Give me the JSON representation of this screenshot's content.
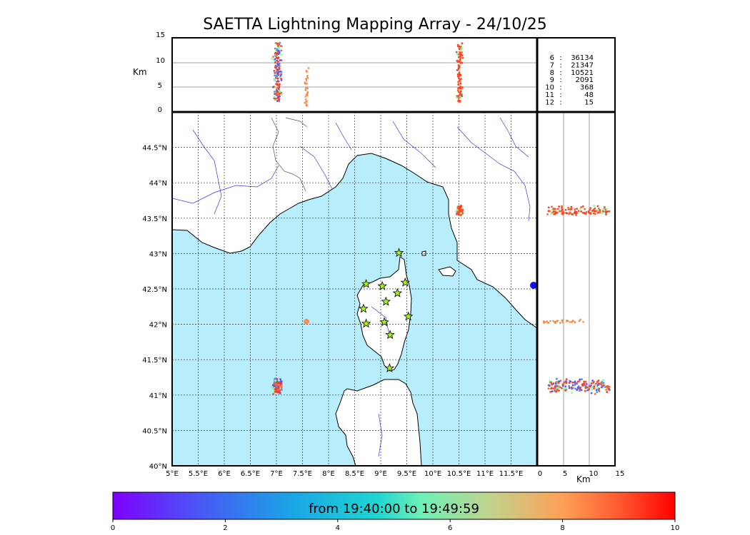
{
  "title": "SAETTA Lightning Mapping Array - 24/10/25",
  "height_axis": {
    "unit": "Km",
    "ticks": [
      "15",
      "10",
      "5",
      "0"
    ],
    "ticks_x": [
      "0",
      "5",
      "10",
      "15"
    ]
  },
  "longitude_ticks": [
    "5°E",
    "5.5°E",
    "6°E",
    "6.5°E",
    "7°E",
    "7.5°E",
    "8°E",
    "8.5°E",
    "9°E",
    "9.5°E",
    "10°E",
    "10.5°E",
    "11°E",
    "11.5°E"
  ],
  "latitude_ticks": [
    "44.5°N",
    "44°N",
    "43.5°N",
    "43°N",
    "42.5°N",
    "42°N",
    "41.5°N",
    "41°N",
    "40.5°N",
    "40°N"
  ],
  "station_counts": [
    {
      "n": "6",
      "sep": ":",
      "count": "36134",
      "color": "#000000"
    },
    {
      "n": "7",
      "sep": ":",
      "count": "21347",
      "color": "#e00000"
    },
    {
      "n": "8",
      "sep": ":",
      "count": "10521",
      "color": "#000000"
    },
    {
      "n": "9",
      "sep": ":",
      "count": "2091",
      "color": "#000000"
    },
    {
      "n": "10",
      "sep": ":",
      "count": "368",
      "color": "#000000"
    },
    {
      "n": "11",
      "sep": ":",
      "count": "48",
      "color": "#000000"
    },
    {
      "n": "12",
      "sep": ":",
      "count": "15",
      "color": "#000000"
    }
  ],
  "colorbar": {
    "label": "from 19:40:00 to 19:49:59",
    "ticks": [
      "0",
      "2",
      "4",
      "6",
      "8",
      "10"
    ]
  },
  "map_extent": {
    "lon": [
      5,
      12
    ],
    "lat": [
      40,
      45
    ]
  },
  "stations": [
    {
      "lon": 9.35,
      "lat": 43.01
    },
    {
      "lon": 8.72,
      "lat": 42.57
    },
    {
      "lon": 9.03,
      "lat": 42.54
    },
    {
      "lon": 9.47,
      "lat": 42.59
    },
    {
      "lon": 9.32,
      "lat": 42.44
    },
    {
      "lon": 9.1,
      "lat": 42.32
    },
    {
      "lon": 8.67,
      "lat": 42.22
    },
    {
      "lon": 9.53,
      "lat": 42.11
    },
    {
      "lon": 8.72,
      "lat": 42.01
    },
    {
      "lon": 9.07,
      "lat": 42.03
    },
    {
      "lon": 9.18,
      "lat": 41.85
    },
    {
      "lon": 9.17,
      "lat": 41.38
    }
  ],
  "lightning_clusters": [
    {
      "lon": 10.52,
      "lat": 43.6,
      "spread_lon": 0.08,
      "spread_lat": 0.09,
      "n": 120,
      "alt_range": [
        2,
        14
      ],
      "colors": [
        "#ff4a2a",
        "#f76a30",
        "#7dffb2",
        "#ff3a20"
      ]
    },
    {
      "lon": 7.58,
      "lat": 42.04,
      "spread_lon": 0.05,
      "spread_lat": 0.03,
      "n": 30,
      "alt_range": [
        1,
        9
      ],
      "colors": [
        "#f9965a",
        "#f58a50"
      ]
    },
    {
      "lon": 7.02,
      "lat": 41.13,
      "spread_lon": 0.12,
      "spread_lat": 0.14,
      "n": 180,
      "alt_range": [
        2,
        14
      ],
      "colors": [
        "#ff4a2a",
        "#f76a30",
        "#5a52ff",
        "#4a8cf5",
        "#ff3a20",
        "#7dffb2"
      ]
    }
  ]
}
